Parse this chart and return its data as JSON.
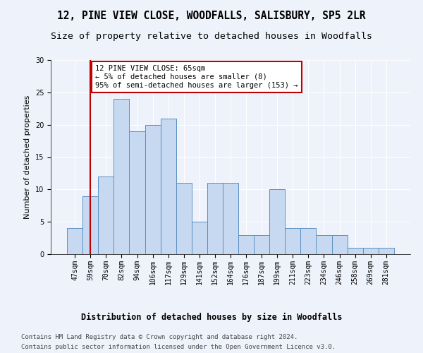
{
  "title1": "12, PINE VIEW CLOSE, WOODFALLS, SALISBURY, SP5 2LR",
  "title2": "Size of property relative to detached houses in Woodfalls",
  "xlabel": "Distribution of detached houses by size in Woodfalls",
  "ylabel": "Number of detached properties",
  "categories": [
    "47sqm",
    "59sqm",
    "70sqm",
    "82sqm",
    "94sqm",
    "106sqm",
    "117sqm",
    "129sqm",
    "141sqm",
    "152sqm",
    "164sqm",
    "176sqm",
    "187sqm",
    "199sqm",
    "211sqm",
    "223sqm",
    "234sqm",
    "246sqm",
    "258sqm",
    "269sqm",
    "281sqm"
  ],
  "values": [
    4,
    9,
    12,
    24,
    19,
    20,
    21,
    11,
    5,
    11,
    11,
    3,
    3,
    10,
    4,
    4,
    3,
    3,
    1,
    1,
    1
  ],
  "bar_color": "#c6d9f0",
  "bar_edge_color": "#5a8fc2",
  "vline_x": 1,
  "vline_color": "#c00000",
  "annotation_text": "12 PINE VIEW CLOSE: 65sqm\n← 5% of detached houses are smaller (8)\n95% of semi-detached houses are larger (153) →",
  "annotation_box_color": "white",
  "annotation_box_edge": "#c00000",
  "ylim": [
    0,
    30
  ],
  "yticks": [
    0,
    5,
    10,
    15,
    20,
    25,
    30
  ],
  "footer1": "Contains HM Land Registry data © Crown copyright and database right 2024.",
  "footer2": "Contains public sector information licensed under the Open Government Licence v3.0.",
  "bg_color": "#eef2fb",
  "plot_bg_color": "#eef2fb",
  "grid_color": "#ffffff",
  "title1_fontsize": 10.5,
  "title2_fontsize": 9.5,
  "xlabel_fontsize": 8.5,
  "ylabel_fontsize": 8,
  "tick_fontsize": 7,
  "footer_fontsize": 6.5,
  "annotation_fontsize": 7.5
}
